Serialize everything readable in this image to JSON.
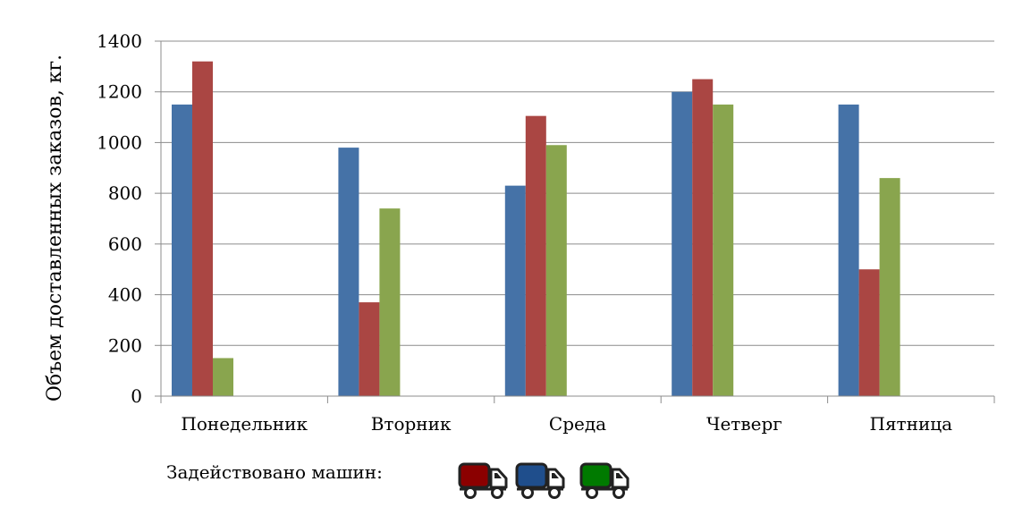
{
  "chart_data": {
    "type": "bar",
    "categories": [
      "Понедельник",
      "Вторник",
      "Среда",
      "Четверг",
      "Пятница"
    ],
    "series": [
      {
        "values": [
          1150,
          980,
          830,
          1200,
          1150
        ],
        "color": "#4572A7"
      },
      {
        "values": [
          1320,
          370,
          1105,
          1250,
          500
        ],
        "color": "#AA4643"
      },
      {
        "values": [
          150,
          740,
          990,
          1150,
          860
        ],
        "color": "#89A54E"
      }
    ],
    "ylabel": "Объем доставленных заказов, кг.",
    "xlabel": "",
    "title": "",
    "ylim": [
      0,
      1400
    ],
    "yticks": [
      0,
      200,
      400,
      600,
      800,
      1000,
      1200,
      1400
    ],
    "grid": true
  },
  "legend": {
    "label": "Задействовано машин:",
    "trucks": [
      {
        "icon": "truck-icon",
        "color": "#8B0000"
      },
      {
        "icon": "truck-icon",
        "color": "#1F4E8C"
      },
      {
        "icon": "truck-icon",
        "color": "#007A00"
      }
    ]
  }
}
